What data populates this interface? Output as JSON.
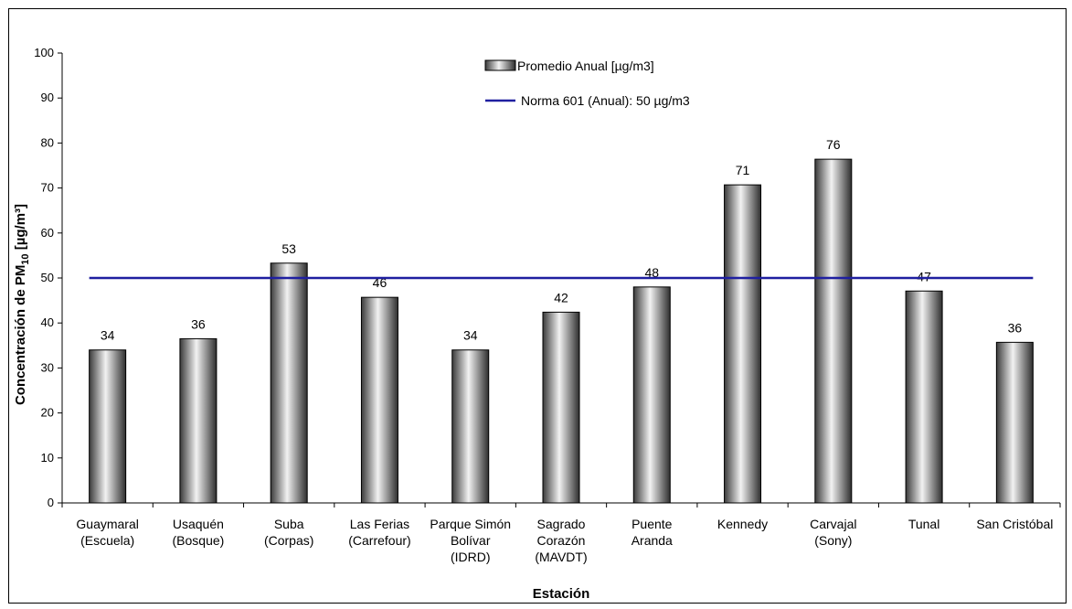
{
  "chart_data": {
    "type": "bar",
    "categories": [
      [
        "Guaymaral",
        "(Escuela)"
      ],
      [
        "Usaquén",
        "(Bosque)"
      ],
      [
        "Suba",
        "(Corpas)"
      ],
      [
        "Las Ferias",
        "(Carrefour)"
      ],
      [
        "Parque Simón",
        "Bolívar",
        "(IDRD)"
      ],
      [
        "Sagrado",
        "Corazón",
        "(MAVDT)"
      ],
      [
        "Puente",
        "Aranda"
      ],
      [
        "Kennedy"
      ],
      [
        "Carvajal",
        "(Sony)"
      ],
      [
        "Tunal"
      ],
      [
        "San Cristóbal"
      ]
    ],
    "series": [
      {
        "name": "Promedio Anual [µg/m3]",
        "values": [
          34,
          36.5,
          53.3,
          45.7,
          34,
          42.4,
          48,
          70.7,
          76.4,
          47.1,
          35.7
        ],
        "labels": [
          "34",
          "36",
          "53",
          "46",
          "34",
          "42",
          "48",
          "71",
          "76",
          "47",
          "36"
        ],
        "color": "#808080"
      }
    ],
    "reference_line": {
      "name": "Norma 601 (Anual): 50 µg/m3",
      "value": 50,
      "color": "#1f1fa0"
    },
    "xlabel": "Estación",
    "ylabel_main": "Concentración de PM",
    "ylabel_sub": "10",
    "ylabel_unit": " [µg/m³]",
    "ylim": [
      0,
      100
    ],
    "yticks": [
      0,
      10,
      20,
      30,
      40,
      50,
      60,
      70,
      80,
      90,
      100
    ],
    "grid": false,
    "legend_position": "top-center"
  }
}
